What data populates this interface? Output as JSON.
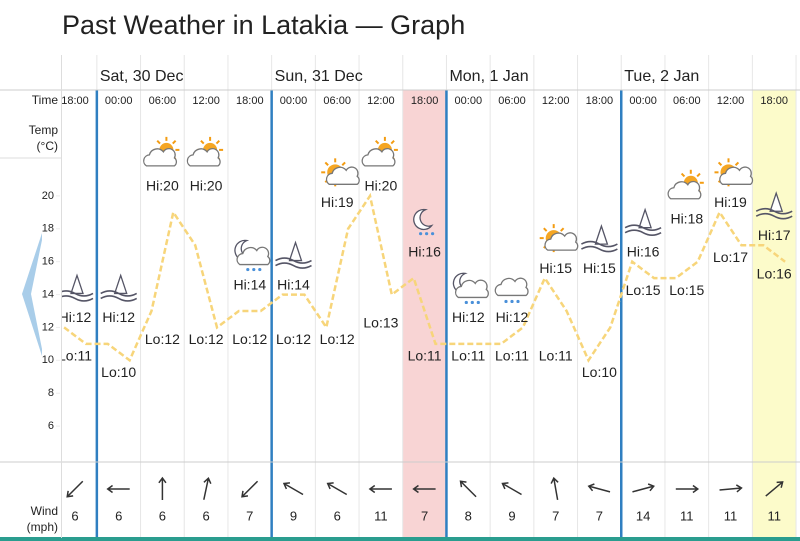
{
  "chart_data": {
    "type": "line",
    "title": "Past Weather in Latakia — Graph",
    "row_labels": {
      "time": "Time",
      "temp": [
        "Temp",
        "(°C)"
      ],
      "wind": [
        "Wind",
        "(mph)"
      ]
    },
    "days": [
      "Sat, 30 Dec",
      "Sun, 31 Dec",
      "Mon, 1 Jan",
      "Tue, 2 Jan"
    ],
    "times": [
      "18:00",
      "00:00",
      "06:00",
      "12:00",
      "18:00",
      "00:00",
      "06:00",
      "12:00",
      "18:00",
      "00:00",
      "06:00",
      "12:00",
      "18:00",
      "00:00",
      "06:00",
      "12:00",
      "18:00"
    ],
    "ylim": [
      4,
      22
    ],
    "yticks": [
      6,
      8,
      10,
      12,
      14,
      16,
      18,
      20
    ],
    "series": [
      {
        "color": "#f7d57a",
        "values": [
          12,
          11,
          11,
          10,
          13,
          19,
          17,
          12,
          13,
          13,
          14,
          14,
          12,
          18,
          20,
          14,
          15,
          11,
          11,
          11,
          11,
          12,
          15,
          13,
          10,
          12,
          16,
          15,
          15,
          16,
          19,
          17,
          17,
          16
        ]
      }
    ],
    "hi": {
      "values": [
        12,
        12,
        20,
        20,
        14,
        14,
        19,
        20,
        16,
        12,
        12,
        15,
        15,
        16,
        18,
        19,
        17
      ],
      "value_labels": [
        "Hi:12",
        "Hi:12",
        "Hi:20",
        "Hi:20",
        "Hi:14",
        "Hi:14",
        "Hi:19",
        "Hi:20",
        "Hi:16",
        "Hi:12",
        "Hi:12",
        "Hi:15",
        "Hi:15",
        "Hi:16",
        "Hi:18",
        "Hi:19",
        "Hi:17"
      ]
    },
    "lo": {
      "values": [
        11,
        10,
        12,
        12,
        12,
        12,
        12,
        13,
        11,
        11,
        11,
        11,
        10,
        15,
        15,
        17,
        16
      ],
      "value_labels": [
        "Lo:11",
        "Lo:10",
        "Lo:12",
        "Lo:12",
        "Lo:12",
        "Lo:12",
        "Lo:12",
        "Lo:13",
        "Lo:11",
        "Lo:11",
        "Lo:11",
        "Lo:11",
        "Lo:10",
        "Lo:15",
        "Lo:15",
        "Lo:17",
        "Lo:16"
      ]
    },
    "wind": {
      "values": [
        6,
        6,
        6,
        6,
        7,
        9,
        6,
        11,
        7,
        8,
        9,
        7,
        7,
        14,
        11,
        11,
        11
      ]
    }
  }
}
